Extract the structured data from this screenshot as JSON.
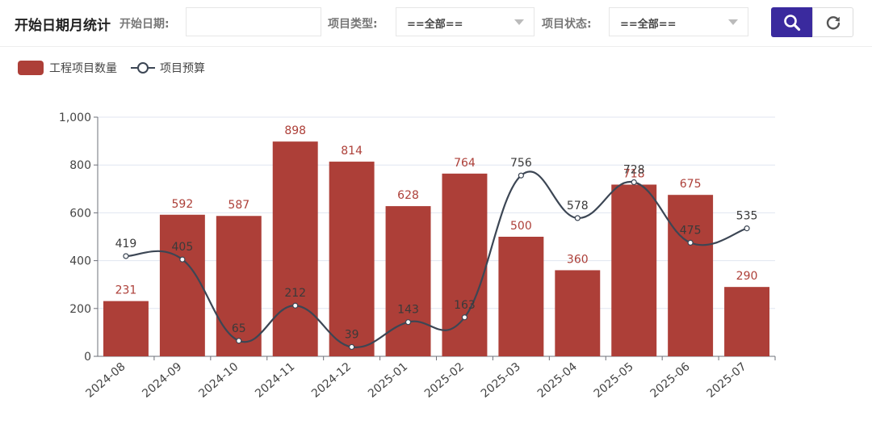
{
  "toolbar": {
    "title": "开始日期月统计",
    "start_date_label": "开始日期:",
    "start_date_value": "",
    "type_label": "项目类型:",
    "type_value": "==全部==",
    "status_label": "项目状态:",
    "status_value": "==全部==",
    "search_icon": "search-icon",
    "refresh_icon": "refresh-icon"
  },
  "legend": {
    "bar_label": "工程项目数量",
    "line_label": "项目预算"
  },
  "colors": {
    "bar": "#ad3f38",
    "line": "#3c4654",
    "accent": "#3a2a9e"
  },
  "chart_data": {
    "type": "bar",
    "categories": [
      "2024-08",
      "2024-09",
      "2024-10",
      "2024-11",
      "2024-12",
      "2025-01",
      "2025-02",
      "2025-03",
      "2025-04",
      "2025-05",
      "2025-06",
      "2025-07"
    ],
    "series": [
      {
        "name": "工程项目数量",
        "type": "bar",
        "values": [
          231,
          592,
          587,
          898,
          814,
          628,
          764,
          500,
          360,
          718,
          675,
          290
        ]
      },
      {
        "name": "项目预算",
        "type": "line",
        "smooth": true,
        "values": [
          419,
          405,
          65,
          212,
          39,
          143,
          163,
          756,
          578,
          728,
          475,
          535
        ]
      }
    ],
    "yticks": [
      "0",
      "200",
      "400",
      "600",
      "800",
      "1,000"
    ],
    "ylim": [
      0,
      1000
    ],
    "grid": true,
    "legend_position": "top-left"
  }
}
